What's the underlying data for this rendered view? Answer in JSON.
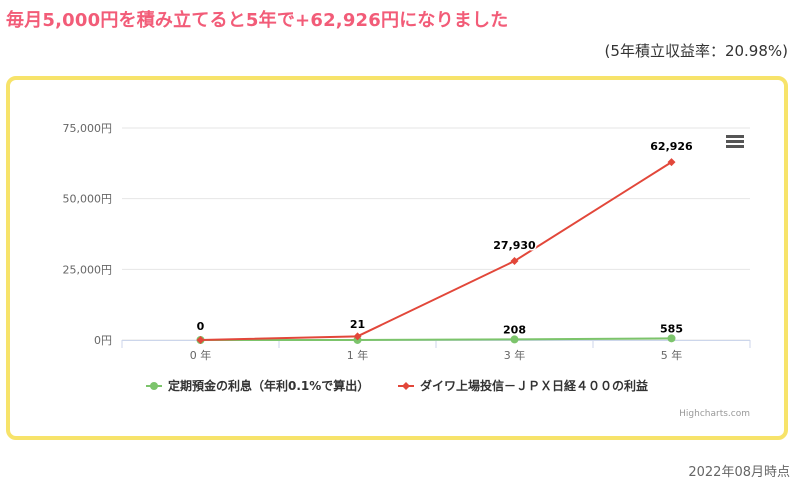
{
  "header": {
    "title": "毎月5,000円を積み立てると5年で+62,926円になりました",
    "subtitle": "(5年積立収益率：20.98%)"
  },
  "footer": {
    "date": "2022年08月時点"
  },
  "credit": "Highcharts.com",
  "icons": {
    "menu": "hamburger-menu-icon"
  },
  "colors": {
    "title": "#f25c78",
    "border": "#f7e36a",
    "green": "#7cc46b",
    "red": "#e2473a"
  },
  "chart_data": {
    "type": "line",
    "categories": [
      "0 年",
      "1 年",
      "3 年",
      "5 年"
    ],
    "yticks": [
      "0円",
      "25,000円",
      "50,000円",
      "75,000円"
    ],
    "ylim": [
      0,
      75000
    ],
    "grid": true,
    "legend_position": "bottom",
    "series": [
      {
        "name": "定期預金の利息（年利0.1%で算出）",
        "color": "#7cc46b",
        "values": [
          0,
          21,
          208,
          585
        ]
      },
      {
        "name": "ダイワ上場投信－ＪＰＸ日経４００の利益",
        "color": "#e2473a",
        "values": [
          0,
          1300,
          27930,
          62926
        ]
      }
    ],
    "data_labels": [
      {
        "category": "0 年",
        "text": "0"
      },
      {
        "category": "1 年",
        "text": "21"
      },
      {
        "category": "3 年",
        "text": "27,930"
      },
      {
        "category": "3 年",
        "text": "208"
      },
      {
        "category": "5 年",
        "text": "62,926"
      },
      {
        "category": "5 年",
        "text": "585"
      }
    ]
  }
}
